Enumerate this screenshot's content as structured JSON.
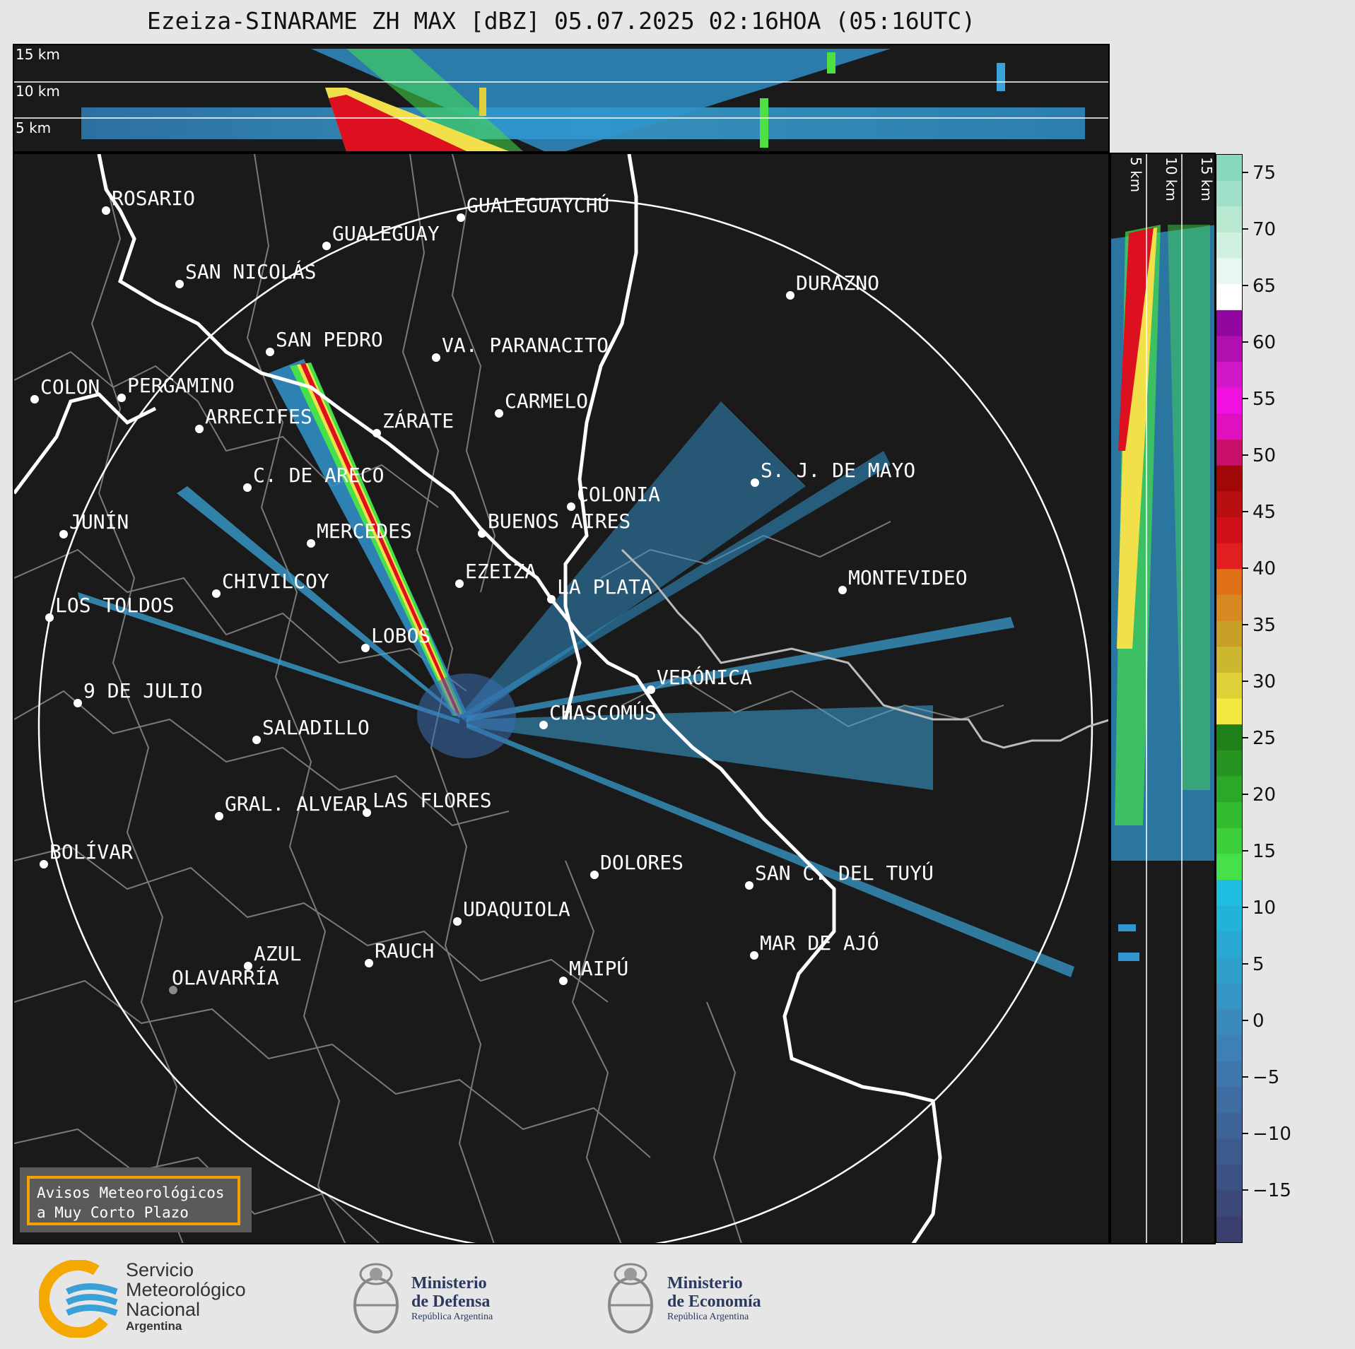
{
  "title": "Ezeiza-SINARAME ZH MAX [dBZ] 05.07.2025 02:16HOA (05:16UTC)",
  "top_panel": {
    "height_labels": [
      "15 km",
      "10 km",
      "5 km"
    ]
  },
  "side_panel": {
    "height_labels": [
      "5 km",
      "10 km",
      "15 km"
    ]
  },
  "colorbar": {
    "ticks": [
      "75",
      "70",
      "65",
      "60",
      "55",
      "50",
      "45",
      "40",
      "35",
      "30",
      "25",
      "20",
      "15",
      "10",
      "5",
      "0",
      "−5",
      "−10",
      "−15"
    ]
  },
  "cities": [
    {
      "name": "ROSARIO"
    },
    {
      "name": "GUALEGUAYCHÚ"
    },
    {
      "name": "GUALEGUAY"
    },
    {
      "name": "SAN NICOLÁS"
    },
    {
      "name": "DURAZNO"
    },
    {
      "name": "SAN PEDRO"
    },
    {
      "name": "VA. PARANACITO"
    },
    {
      "name": "COLON"
    },
    {
      "name": "PERGAMINO"
    },
    {
      "name": "CARMELO"
    },
    {
      "name": "ARRECIFES"
    },
    {
      "name": "ZÁRATE"
    },
    {
      "name": "S. J. DE MAYO"
    },
    {
      "name": "C. DE ARECO"
    },
    {
      "name": "COLONIA"
    },
    {
      "name": "JUNÍN"
    },
    {
      "name": "BUENOS AIRES"
    },
    {
      "name": "MERCEDES"
    },
    {
      "name": "EZEIZA"
    },
    {
      "name": "MONTEVIDEO"
    },
    {
      "name": "CHIVILCOY"
    },
    {
      "name": "LA PLATA"
    },
    {
      "name": "LOS TOLDOS"
    },
    {
      "name": "LOBOS"
    },
    {
      "name": "VERÓNICA"
    },
    {
      "name": "9 DE JULIO"
    },
    {
      "name": "CHASCOMÚS"
    },
    {
      "name": "SALADILLO"
    },
    {
      "name": "GRAL. ALVEAR"
    },
    {
      "name": "LAS FLORES"
    },
    {
      "name": "BOLÍVAR"
    },
    {
      "name": "DOLORES"
    },
    {
      "name": "SAN C. DEL TUYÚ"
    },
    {
      "name": "UDAQUIOLA"
    },
    {
      "name": "MAR DE AJÓ"
    },
    {
      "name": "AZUL"
    },
    {
      "name": "RAUCH"
    },
    {
      "name": "MAIPÚ"
    },
    {
      "name": "OLAVARRÍA"
    }
  ],
  "warning_box": {
    "line1": "Avisos Meteorológicos",
    "line2": "a Muy Corto Plazo"
  },
  "footer": {
    "smn": {
      "line1": "Servicio",
      "line2": "Meteorológico",
      "line3": "Nacional",
      "line4": "Argentina"
    },
    "defensa": {
      "line1": "Ministerio",
      "line2": "de Defensa",
      "line3": "República Argentina"
    },
    "economia": {
      "line1": "Ministerio",
      "line2": "de Economía",
      "line3": "República Argentina"
    }
  },
  "colors": {
    "background": "#1a1a1a",
    "range_ring": "#ffffff",
    "coast": "#ffffff",
    "borders": "#7a7a7a",
    "warning_border": "#f5a000"
  }
}
